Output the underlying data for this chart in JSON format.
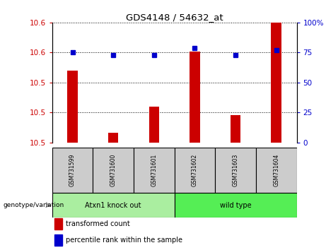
{
  "title": "GDS4148 / 54632_at",
  "samples": [
    "GSM731599",
    "GSM731600",
    "GSM731601",
    "GSM731602",
    "GSM731603",
    "GSM731604"
  ],
  "bar_values": [
    10.535,
    10.483,
    10.505,
    10.551,
    10.498,
    10.578
  ],
  "dot_values": [
    75,
    73,
    73,
    79,
    73,
    77
  ],
  "ylim_left": [
    10.475,
    10.575
  ],
  "ylim_right": [
    0,
    100
  ],
  "yticks_left": [
    10.475,
    10.5,
    10.525,
    10.55,
    10.575
  ],
  "yticks_right": [
    0,
    25,
    50,
    75,
    100
  ],
  "ytick_labels_right": [
    "0",
    "25",
    "50",
    "75",
    "100%"
  ],
  "bar_color": "#cc0000",
  "dot_color": "#0000cc",
  "bar_base": 10.475,
  "groups": [
    {
      "label": "Atxn1 knock out",
      "samples": [
        0,
        1,
        2
      ],
      "color": "#aaeea0"
    },
    {
      "label": "wild type",
      "samples": [
        3,
        4,
        5
      ],
      "color": "#55ee55"
    }
  ],
  "group_label_prefix": "genotype/variation",
  "legend_bar_label": "transformed count",
  "legend_dot_label": "percentile rank within the sample",
  "background_color": "#ffffff",
  "plot_bg": "#ffffff",
  "tick_label_color_left": "#cc0000",
  "tick_label_color_right": "#0000cc",
  "title_color": "#000000",
  "cell_bg": "#cccccc"
}
